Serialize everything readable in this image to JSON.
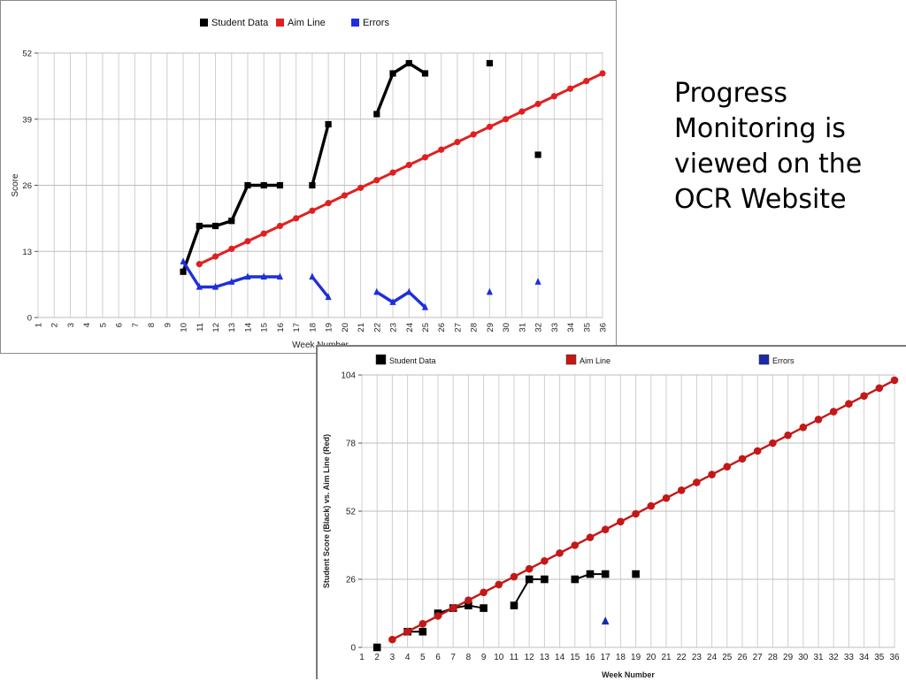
{
  "slide": {
    "text": "Progress Monitoring is viewed on the OCR Website"
  },
  "chart_data": [
    {
      "type": "line",
      "title": "",
      "xlabel": "Week Number",
      "ylabel": "Score",
      "xlim": [
        1,
        36
      ],
      "ylim": [
        0,
        52
      ],
      "y_ticks": [
        0,
        13,
        26,
        39,
        52
      ],
      "x_ticks": [
        1,
        2,
        3,
        4,
        5,
        6,
        7,
        8,
        9,
        10,
        11,
        12,
        13,
        14,
        15,
        16,
        17,
        18,
        19,
        20,
        21,
        22,
        23,
        24,
        25,
        26,
        27,
        28,
        29,
        30,
        31,
        32,
        33,
        34,
        35,
        36
      ],
      "grid": true,
      "legend_position": "top",
      "series": [
        {
          "name": "Student Data",
          "color": "#000000",
          "marker": "square",
          "segments": [
            [
              [
                10,
                9
              ],
              [
                11,
                18
              ],
              [
                12,
                18
              ],
              [
                13,
                19
              ],
              [
                14,
                26
              ],
              [
                15,
                26
              ],
              [
                16,
                26
              ]
            ],
            [
              [
                18,
                26
              ],
              [
                19,
                38
              ]
            ],
            [
              [
                22,
                40
              ],
              [
                23,
                48
              ],
              [
                24,
                50
              ],
              [
                25,
                48
              ]
            ],
            [
              [
                29,
                50
              ]
            ],
            [
              [
                32,
                32
              ]
            ]
          ]
        },
        {
          "name": "Aim Line",
          "color": "#e02020",
          "marker": "circle",
          "segments": [
            [
              [
                11,
                10.5
              ],
              [
                36,
                48
              ]
            ]
          ],
          "markers_every_week": true
        },
        {
          "name": "Errors",
          "color": "#1f2fdc",
          "marker": "triangle",
          "segments": [
            [
              [
                10,
                11
              ],
              [
                11,
                6
              ],
              [
                12,
                6
              ],
              [
                13,
                7
              ],
              [
                14,
                8
              ],
              [
                15,
                8
              ],
              [
                16,
                8
              ]
            ],
            [
              [
                18,
                8
              ],
              [
                19,
                4
              ]
            ],
            [
              [
                22,
                5
              ],
              [
                23,
                3
              ],
              [
                24,
                5
              ],
              [
                25,
                2
              ]
            ],
            [
              [
                29,
                5
              ]
            ],
            [
              [
                32,
                7
              ]
            ]
          ]
        }
      ]
    },
    {
      "type": "line",
      "title": "",
      "xlabel": "Week Number",
      "ylabel": "Student Score (Black) vs. Aim Line (Red)",
      "xlim": [
        1,
        36
      ],
      "ylim": [
        0,
        104
      ],
      "y_ticks": [
        0,
        26,
        52,
        78,
        104
      ],
      "x_ticks": [
        1,
        2,
        3,
        4,
        5,
        6,
        7,
        8,
        9,
        10,
        11,
        12,
        13,
        14,
        15,
        16,
        17,
        18,
        19,
        20,
        21,
        22,
        23,
        24,
        25,
        26,
        27,
        28,
        29,
        30,
        31,
        32,
        33,
        34,
        35,
        36
      ],
      "grid": true,
      "legend_position": "top",
      "series": [
        {
          "name": "Student Data",
          "color": "#000000",
          "marker": "square",
          "segments": [
            [
              [
                2,
                0
              ]
            ],
            [
              [
                4,
                6
              ],
              [
                5,
                6
              ]
            ],
            [
              [
                6,
                13
              ],
              [
                7,
                15
              ],
              [
                8,
                16
              ],
              [
                9,
                15
              ]
            ],
            [
              [
                11,
                16
              ],
              [
                12,
                26
              ],
              [
                13,
                26
              ]
            ],
            [
              [
                15,
                26
              ],
              [
                16,
                28
              ],
              [
                17,
                28
              ]
            ],
            [
              [
                19,
                28
              ]
            ]
          ]
        },
        {
          "name": "Aim Line",
          "color": "#c41818",
          "marker": "circle",
          "segments": [
            [
              [
                3,
                3
              ],
              [
                36,
                102
              ]
            ]
          ],
          "markers_every_week": true
        },
        {
          "name": "Errors",
          "color": "#1a2aa8",
          "marker": "triangle",
          "segments": [
            [
              [
                17,
                10
              ]
            ]
          ]
        }
      ]
    }
  ]
}
